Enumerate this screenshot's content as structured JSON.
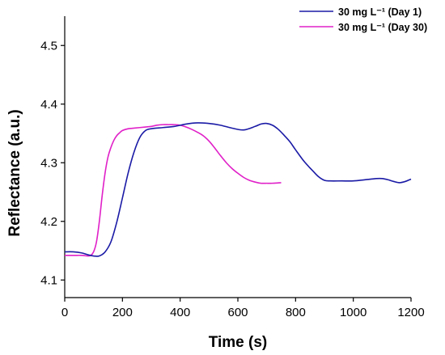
{
  "chart_data": {
    "type": "line",
    "xlabel": "Time (s)",
    "ylabel": "Reflectance (a.u.)",
    "xlim": [
      0,
      1200
    ],
    "ylim": [
      4.07,
      4.55
    ],
    "xticks": [
      0,
      200,
      400,
      600,
      800,
      1000,
      1200
    ],
    "xtick_labels": [
      "0",
      "200",
      "400",
      "600",
      "800",
      "1000",
      "1200"
    ],
    "yticks": [
      4.1,
      4.2,
      4.3,
      4.4,
      4.5
    ],
    "ytick_labels": [
      "4.1",
      "4.2",
      "4.3",
      "4.4",
      "4.5"
    ],
    "legend_position": "top-right",
    "grid": false,
    "series": [
      {
        "name": "30 mg L⁻¹ (Day 1)",
        "color": "#1a1aa6",
        "x": [
          0,
          30,
          60,
          80,
          100,
          120,
          140,
          160,
          180,
          200,
          220,
          240,
          260,
          280,
          300,
          340,
          380,
          420,
          460,
          500,
          540,
          580,
          620,
          660,
          680,
          700,
          720,
          740,
          760,
          780,
          800,
          830,
          860,
          880,
          900,
          920,
          960,
          1000,
          1040,
          1080,
          1100,
          1120,
          1140,
          1160,
          1180,
          1200
        ],
        "y": [
          4.148,
          4.148,
          4.146,
          4.143,
          4.141,
          4.141,
          4.148,
          4.165,
          4.198,
          4.24,
          4.283,
          4.318,
          4.343,
          4.355,
          4.358,
          4.36,
          4.362,
          4.366,
          4.368,
          4.367,
          4.364,
          4.359,
          4.356,
          4.362,
          4.366,
          4.367,
          4.364,
          4.357,
          4.347,
          4.336,
          4.322,
          4.302,
          4.286,
          4.276,
          4.27,
          4.269,
          4.269,
          4.269,
          4.271,
          4.273,
          4.273,
          4.271,
          4.268,
          4.266,
          4.268,
          4.272
        ]
      },
      {
        "name": "30 mg L⁻¹ (Day 30)",
        "color": "#e020c8",
        "x": [
          0,
          30,
          60,
          80,
          90,
          100,
          110,
          120,
          130,
          140,
          150,
          160,
          170,
          180,
          190,
          200,
          220,
          240,
          260,
          280,
          300,
          320,
          340,
          360,
          380,
          400,
          420,
          440,
          460,
          480,
          500,
          520,
          540,
          560,
          580,
          600,
          620,
          640,
          660,
          680,
          700,
          720,
          750
        ],
        "y": [
          4.142,
          4.142,
          4.142,
          4.141,
          4.142,
          4.148,
          4.165,
          4.2,
          4.245,
          4.283,
          4.31,
          4.326,
          4.338,
          4.346,
          4.351,
          4.355,
          4.358,
          4.359,
          4.36,
          4.361,
          4.362,
          4.364,
          4.365,
          4.365,
          4.365,
          4.364,
          4.361,
          4.357,
          4.352,
          4.346,
          4.337,
          4.325,
          4.312,
          4.3,
          4.29,
          4.282,
          4.275,
          4.27,
          4.267,
          4.265,
          4.265,
          4.265,
          4.266
        ]
      }
    ]
  }
}
